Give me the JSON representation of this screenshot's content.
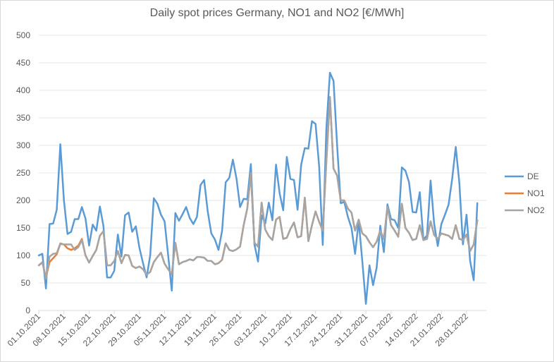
{
  "chart_data": {
    "type": "line",
    "title": "Daily spot prices Germany, NO1 and NO2 [€/MWh]",
    "xlabel": "",
    "ylabel": "",
    "ylim": [
      0,
      500
    ],
    "yticks": [
      0,
      50,
      100,
      150,
      200,
      250,
      300,
      350,
      400,
      450,
      500
    ],
    "xtick_labels": [
      "01.10.2021",
      "08.10.2021",
      "15.10.2021",
      "22.10.2021",
      "29.10.2021",
      "05.11.2021",
      "12.11.2021",
      "19.11.2021",
      "26.11.2021",
      "03.12.2021",
      "10.12.2021",
      "17.12.2021",
      "24.12.2021",
      "31.12.2021",
      "07.01.2022",
      "14.01.2022",
      "21.01.2022",
      "28.01.2022"
    ],
    "grid": "horizontal",
    "legend_position": "right",
    "series": [
      {
        "name": "DE",
        "color": "#5b9bd5",
        "values": [
          100,
          103,
          40,
          157,
          158,
          183,
          302,
          200,
          139,
          143,
          166,
          166,
          188,
          167,
          118,
          156,
          145,
          189,
          153,
          60,
          60,
          72,
          138,
          98,
          173,
          178,
          143,
          153,
          114,
          86,
          60,
          100,
          204,
          194,
          174,
          162,
          100,
          36,
          177,
          163,
          175,
          188,
          168,
          157,
          170,
          228,
          237,
          180,
          140,
          129,
          110,
          145,
          233,
          241,
          274,
          240,
          188,
          203,
          202,
          266,
          120,
          89,
          173,
          158,
          196,
          164,
          265,
          213,
          182,
          279,
          239,
          237,
          183,
          265,
          295,
          294,
          344,
          339,
          262,
          119,
          330,
          432,
          417,
          300,
          195,
          197,
          170,
          150,
          103,
          163,
          90,
          12,
          82,
          46,
          78,
          154,
          106,
          193,
          166,
          164,
          150,
          260,
          254,
          233,
          179,
          178,
          215,
          129,
          136,
          236,
          157,
          117,
          157,
          174,
          192,
          239,
          297,
          232,
          120,
          174,
          90,
          55,
          195
        ]
      },
      {
        "name": "NO1",
        "color": "#ed7d31",
        "values": [
          82,
          87,
          60,
          88,
          95,
          102,
          121,
          120,
          113,
          110,
          113,
          118,
          130,
          100,
          87,
          99,
          110,
          136,
          144,
          82,
          82,
          90,
          108,
          86,
          101,
          100,
          81,
          77,
          80,
          75,
          65,
          70,
          88,
          97,
          105,
          85,
          75,
          66,
          123,
          84,
          88,
          90,
          93,
          91,
          97,
          97,
          96,
          90,
          90,
          84,
          86,
          92,
          122,
          110,
          108,
          111,
          116,
          155,
          185,
          250,
          123,
          116,
          196,
          147,
          135,
          128,
          165,
          170,
          130,
          132,
          148,
          160,
          133,
          135,
          205,
          126,
          155,
          180,
          161,
          145,
          270,
          388,
          258,
          245,
          200,
          200,
          185,
          178,
          145,
          165,
          140,
          135,
          124,
          115,
          125,
          145,
          130,
          188,
          155,
          145,
          134,
          194,
          150,
          141,
          128,
          130,
          155,
          128,
          130,
          162,
          137,
          130,
          140,
          138,
          136,
          130,
          155,
          130,
          128,
          138,
          108,
          120,
          164
        ]
      },
      {
        "name": "NO2",
        "color": "#a5a5a5",
        "values": [
          82,
          88,
          58,
          98,
          103,
          104,
          122,
          120,
          120,
          120,
          110,
          115,
          128,
          100,
          87,
          99,
          110,
          136,
          144,
          82,
          82,
          90,
          108,
          86,
          101,
          100,
          81,
          77,
          80,
          75,
          65,
          70,
          88,
          97,
          105,
          85,
          75,
          66,
          123,
          84,
          88,
          90,
          93,
          91,
          97,
          97,
          96,
          90,
          90,
          84,
          86,
          92,
          122,
          110,
          108,
          111,
          116,
          155,
          185,
          250,
          123,
          116,
          196,
          147,
          135,
          128,
          165,
          170,
          130,
          132,
          148,
          160,
          133,
          135,
          205,
          126,
          155,
          180,
          161,
          145,
          270,
          388,
          258,
          245,
          200,
          200,
          185,
          178,
          145,
          165,
          140,
          135,
          124,
          115,
          125,
          145,
          130,
          188,
          155,
          145,
          134,
          194,
          150,
          141,
          128,
          130,
          155,
          128,
          130,
          162,
          137,
          130,
          140,
          138,
          136,
          130,
          155,
          130,
          128,
          138,
          108,
          120,
          164
        ]
      }
    ]
  }
}
